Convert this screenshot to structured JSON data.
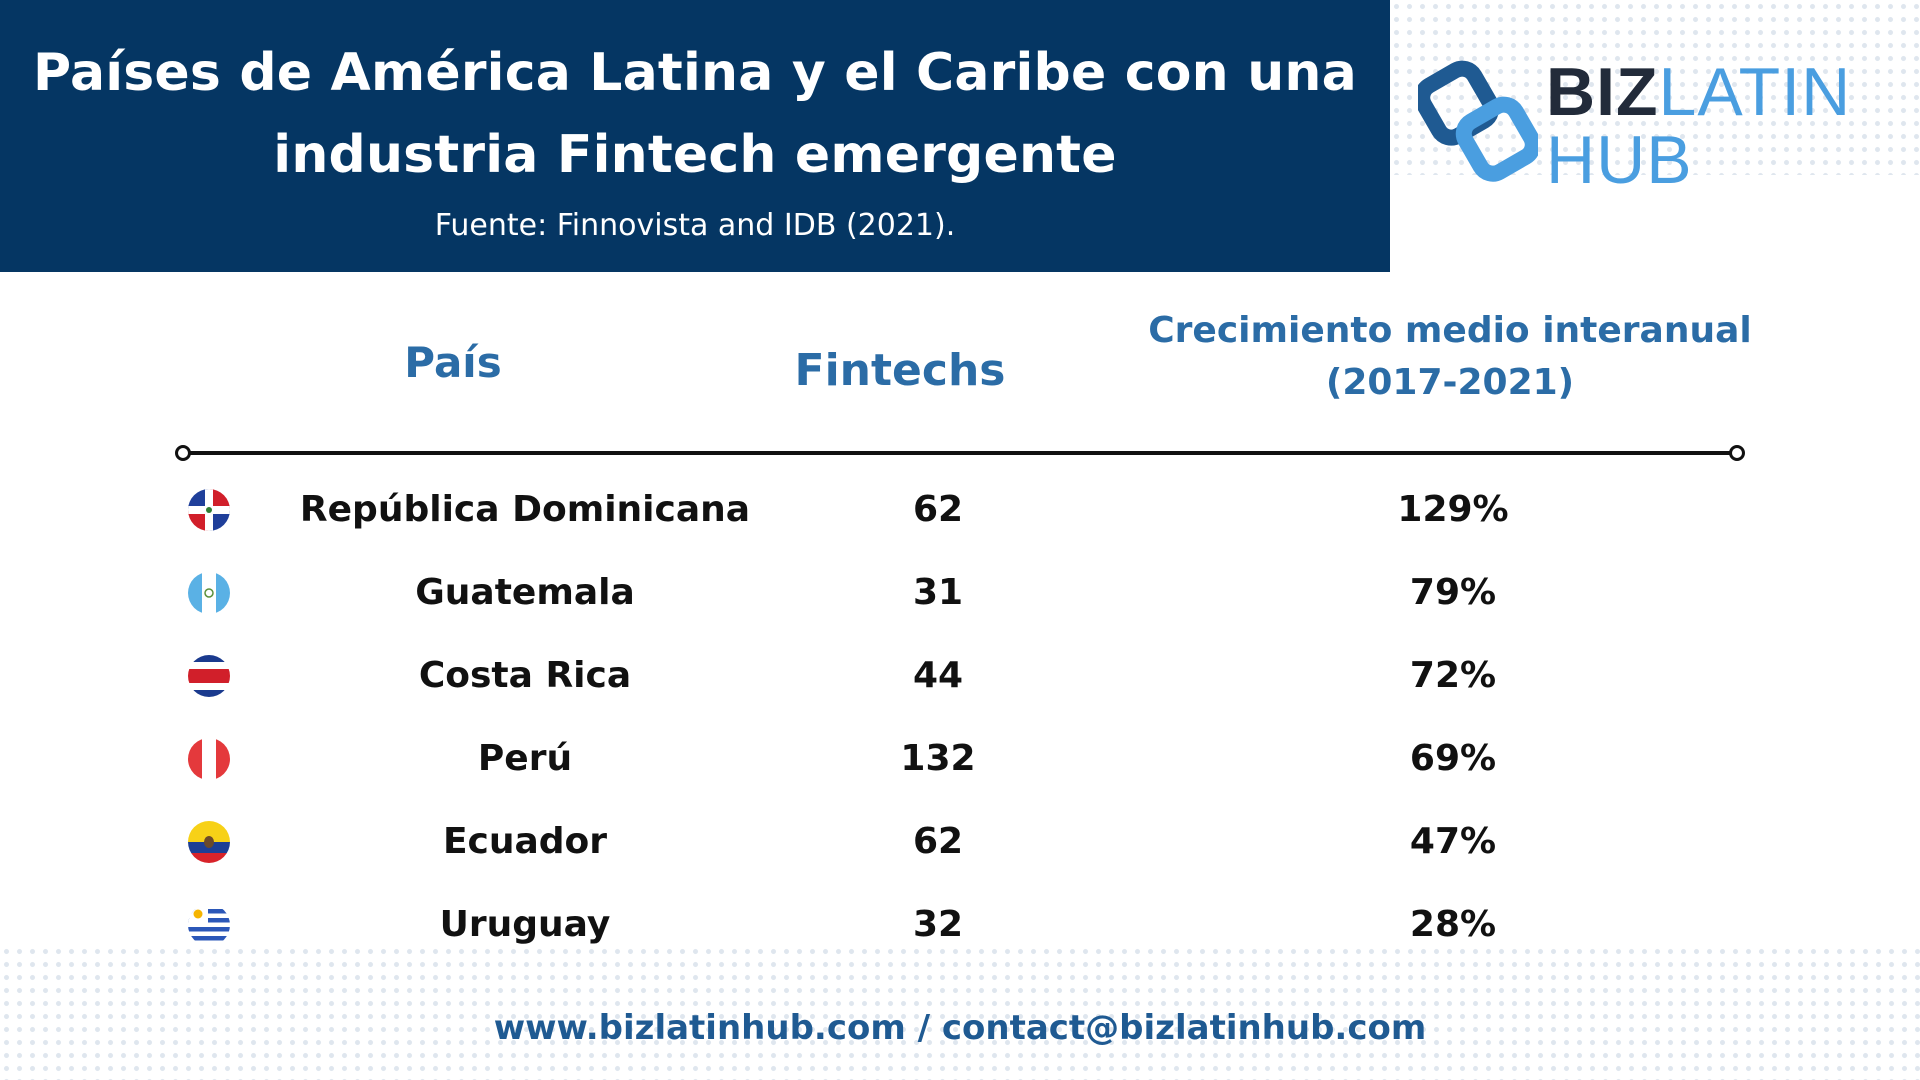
{
  "header": {
    "title_line1": "Países de América Latina y el Caribe con una",
    "title_line2": "industria Fintech emergente",
    "subtitle": "Fuente: Finnovista and IDB (2021).",
    "background_color": "#053663"
  },
  "logo": {
    "word1": "BIZ",
    "word2": "LATIN",
    "word3": "HUB",
    "icon": "biz-latin-hub-logo-icon",
    "colors": {
      "dark": "#222b3a",
      "blue": "#4a9ee0"
    }
  },
  "chart_data": {
    "type": "table",
    "columns": [
      "País",
      "Fintechs",
      "Crecimiento medio interanual (2017-2021)"
    ],
    "growth_header_line1": "Crecimiento medio interanual",
    "growth_header_line2": "(2017-2021)",
    "rows": [
      {
        "country": "República Dominicana",
        "flag": "dominican-republic-flag-icon",
        "fintechs": "62",
        "growth": "129%"
      },
      {
        "country": "Guatemala",
        "flag": "guatemala-flag-icon",
        "fintechs": "31",
        "growth": "79%"
      },
      {
        "country": "Costa Rica",
        "flag": "costa-rica-flag-icon",
        "fintechs": "44",
        "growth": "72%"
      },
      {
        "country": "Perú",
        "flag": "peru-flag-icon",
        "fintechs": "132",
        "growth": "69%"
      },
      {
        "country": "Ecuador",
        "flag": "ecuador-flag-icon",
        "fintechs": "62",
        "growth": "47%"
      },
      {
        "country": "Uruguay",
        "flag": "uruguay-flag-icon",
        "fintechs": "32",
        "growth": "28%"
      }
    ],
    "header_color": "#2b6ca6"
  },
  "footer": {
    "text": "www.bizlatinhub.com / contact@bizlatinhub.com"
  }
}
